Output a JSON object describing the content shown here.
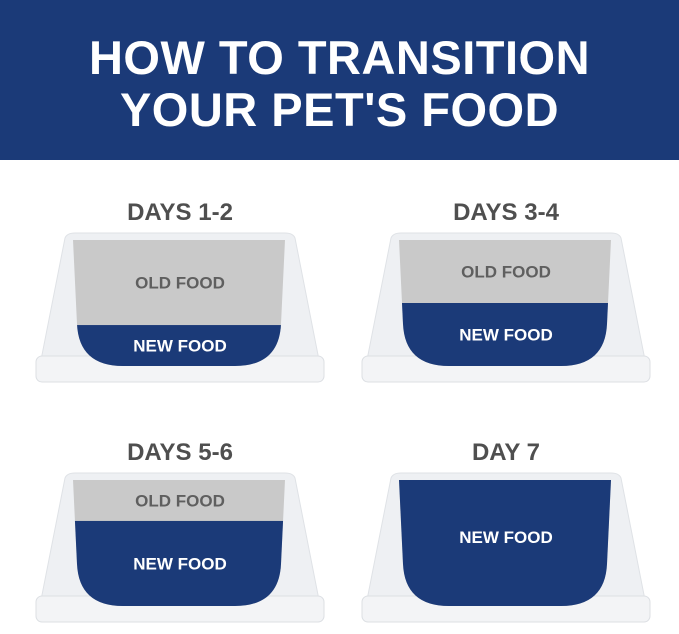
{
  "title": {
    "line1": "HOW TO TRANSITION",
    "line2": "YOUR PET'S FOOD"
  },
  "colors": {
    "header": "#1b3a78",
    "new_food": "#1b3a78",
    "old_food": "#c9c9c9",
    "bowl": "#eef0f3"
  },
  "steps": [
    {
      "day_label": "DAYS 1-2",
      "old_label": "OLD FOOD",
      "new_label": "NEW FOOD",
      "new_food_percent": 25
    },
    {
      "day_label": "DAYS 3-4",
      "old_label": "OLD FOOD",
      "new_label": "NEW FOOD",
      "new_food_percent": 50
    },
    {
      "day_label": "DAYS 5-6",
      "old_label": "OLD FOOD",
      "new_label": "NEW FOOD",
      "new_food_percent": 75
    },
    {
      "day_label": "DAY 7",
      "new_label": "NEW FOOD",
      "new_food_percent": 100
    }
  ]
}
